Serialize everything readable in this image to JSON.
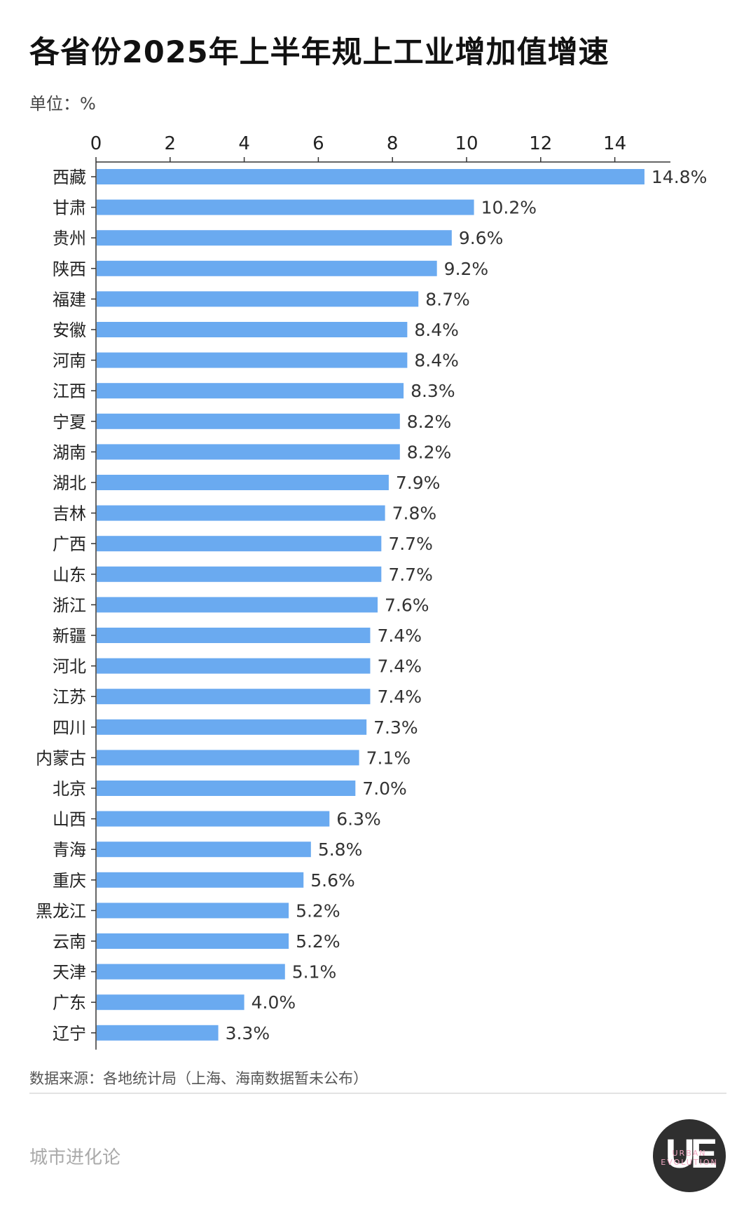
{
  "title": "各省份2025年上半年规上工业增加值增速",
  "unit_label": "单位：%",
  "source": "数据来源：各地统计局（上海、海南数据暂未公布）",
  "brand": "城市进化论",
  "logo": {
    "main": "UE",
    "sub": "URBAN EVOLUTION"
  },
  "colors": {
    "bar": "#6aaaf0",
    "axis": "#333333",
    "text": "#222222"
  },
  "chart_data": {
    "type": "bar",
    "orientation": "horizontal",
    "title": "各省份2025年上半年规上工业增加值增速",
    "xlim": [
      0,
      15.5
    ],
    "ticks": [
      0,
      2,
      4,
      6,
      8,
      10,
      12,
      14
    ],
    "tick_labels": [
      "0",
      "2",
      "4",
      "6",
      "8",
      "10",
      "12",
      "14"
    ],
    "axis_position": "top",
    "categories": [
      "西藏",
      "甘肃",
      "贵州",
      "陕西",
      "福建",
      "安徽",
      "河南",
      "江西",
      "宁夏",
      "湖南",
      "湖北",
      "吉林",
      "广西",
      "山东",
      "浙江",
      "新疆",
      "河北",
      "江苏",
      "四川",
      "内蒙古",
      "北京",
      "山西",
      "青海",
      "重庆",
      "黑龙江",
      "云南",
      "天津",
      "广东",
      "辽宁"
    ],
    "values": [
      14.8,
      10.2,
      9.6,
      9.2,
      8.7,
      8.4,
      8.4,
      8.3,
      8.2,
      8.2,
      7.9,
      7.8,
      7.7,
      7.7,
      7.6,
      7.4,
      7.4,
      7.4,
      7.3,
      7.1,
      7.0,
      6.3,
      5.8,
      5.6,
      5.2,
      5.2,
      5.1,
      4.0,
      3.3
    ],
    "data_labels": [
      "14.8%",
      "10.2%",
      "9.6%",
      "9.2%",
      "8.7%",
      "8.4%",
      "8.4%",
      "8.3%",
      "8.2%",
      "8.2%",
      "7.9%",
      "7.8%",
      "7.7%",
      "7.7%",
      "7.6%",
      "7.4%",
      "7.4%",
      "7.4%",
      "7.3%",
      "7.1%",
      "7.0%",
      "6.3%",
      "5.8%",
      "5.6%",
      "5.2%",
      "5.2%",
      "5.1%",
      "4.0%",
      "3.3%"
    ]
  }
}
